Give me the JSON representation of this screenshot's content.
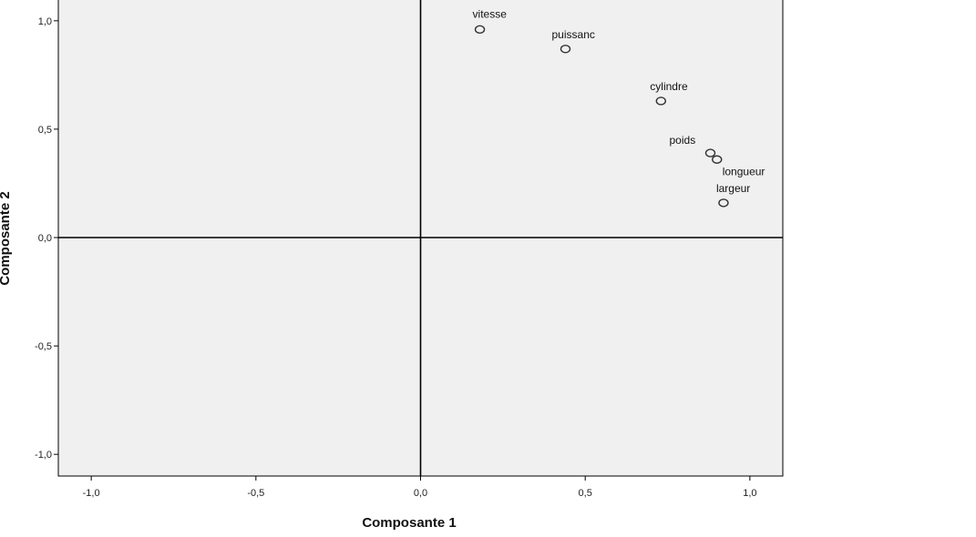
{
  "chart_data": {
    "type": "scatter",
    "title": "",
    "xlabel": "Composante 1",
    "ylabel": "Composante 2",
    "xlim": [
      -1.1,
      1.1
    ],
    "ylim": [
      -1.1,
      1.1
    ],
    "x_ticks": [
      -1.0,
      -0.5,
      0.0,
      0.5,
      1.0
    ],
    "y_ticks": [
      -1.0,
      -0.5,
      0.0,
      0.5,
      1.0
    ],
    "x_tick_labels": [
      "-1,0",
      "-0,5",
      "0,0",
      "0,5",
      "1,0"
    ],
    "y_tick_labels": [
      "-1,0",
      "-0,5",
      "0,0",
      "0,5",
      "1,0"
    ],
    "reference_lines": {
      "x": 0.0,
      "y": 0.0
    },
    "grid": false,
    "colors": {
      "plot_background": "#f0f0f0",
      "marker": "#333333",
      "axis": "#000000"
    },
    "points": [
      {
        "label": "vitesse",
        "x": 0.18,
        "y": 0.96
      },
      {
        "label": "puissanc",
        "x": 0.44,
        "y": 0.87
      },
      {
        "label": "cylindre",
        "x": 0.73,
        "y": 0.63
      },
      {
        "label": "poids",
        "x": 0.88,
        "y": 0.39
      },
      {
        "label": "longueur",
        "x": 0.9,
        "y": 0.36
      },
      {
        "label": "largeur",
        "x": 0.92,
        "y": 0.16
      }
    ]
  }
}
